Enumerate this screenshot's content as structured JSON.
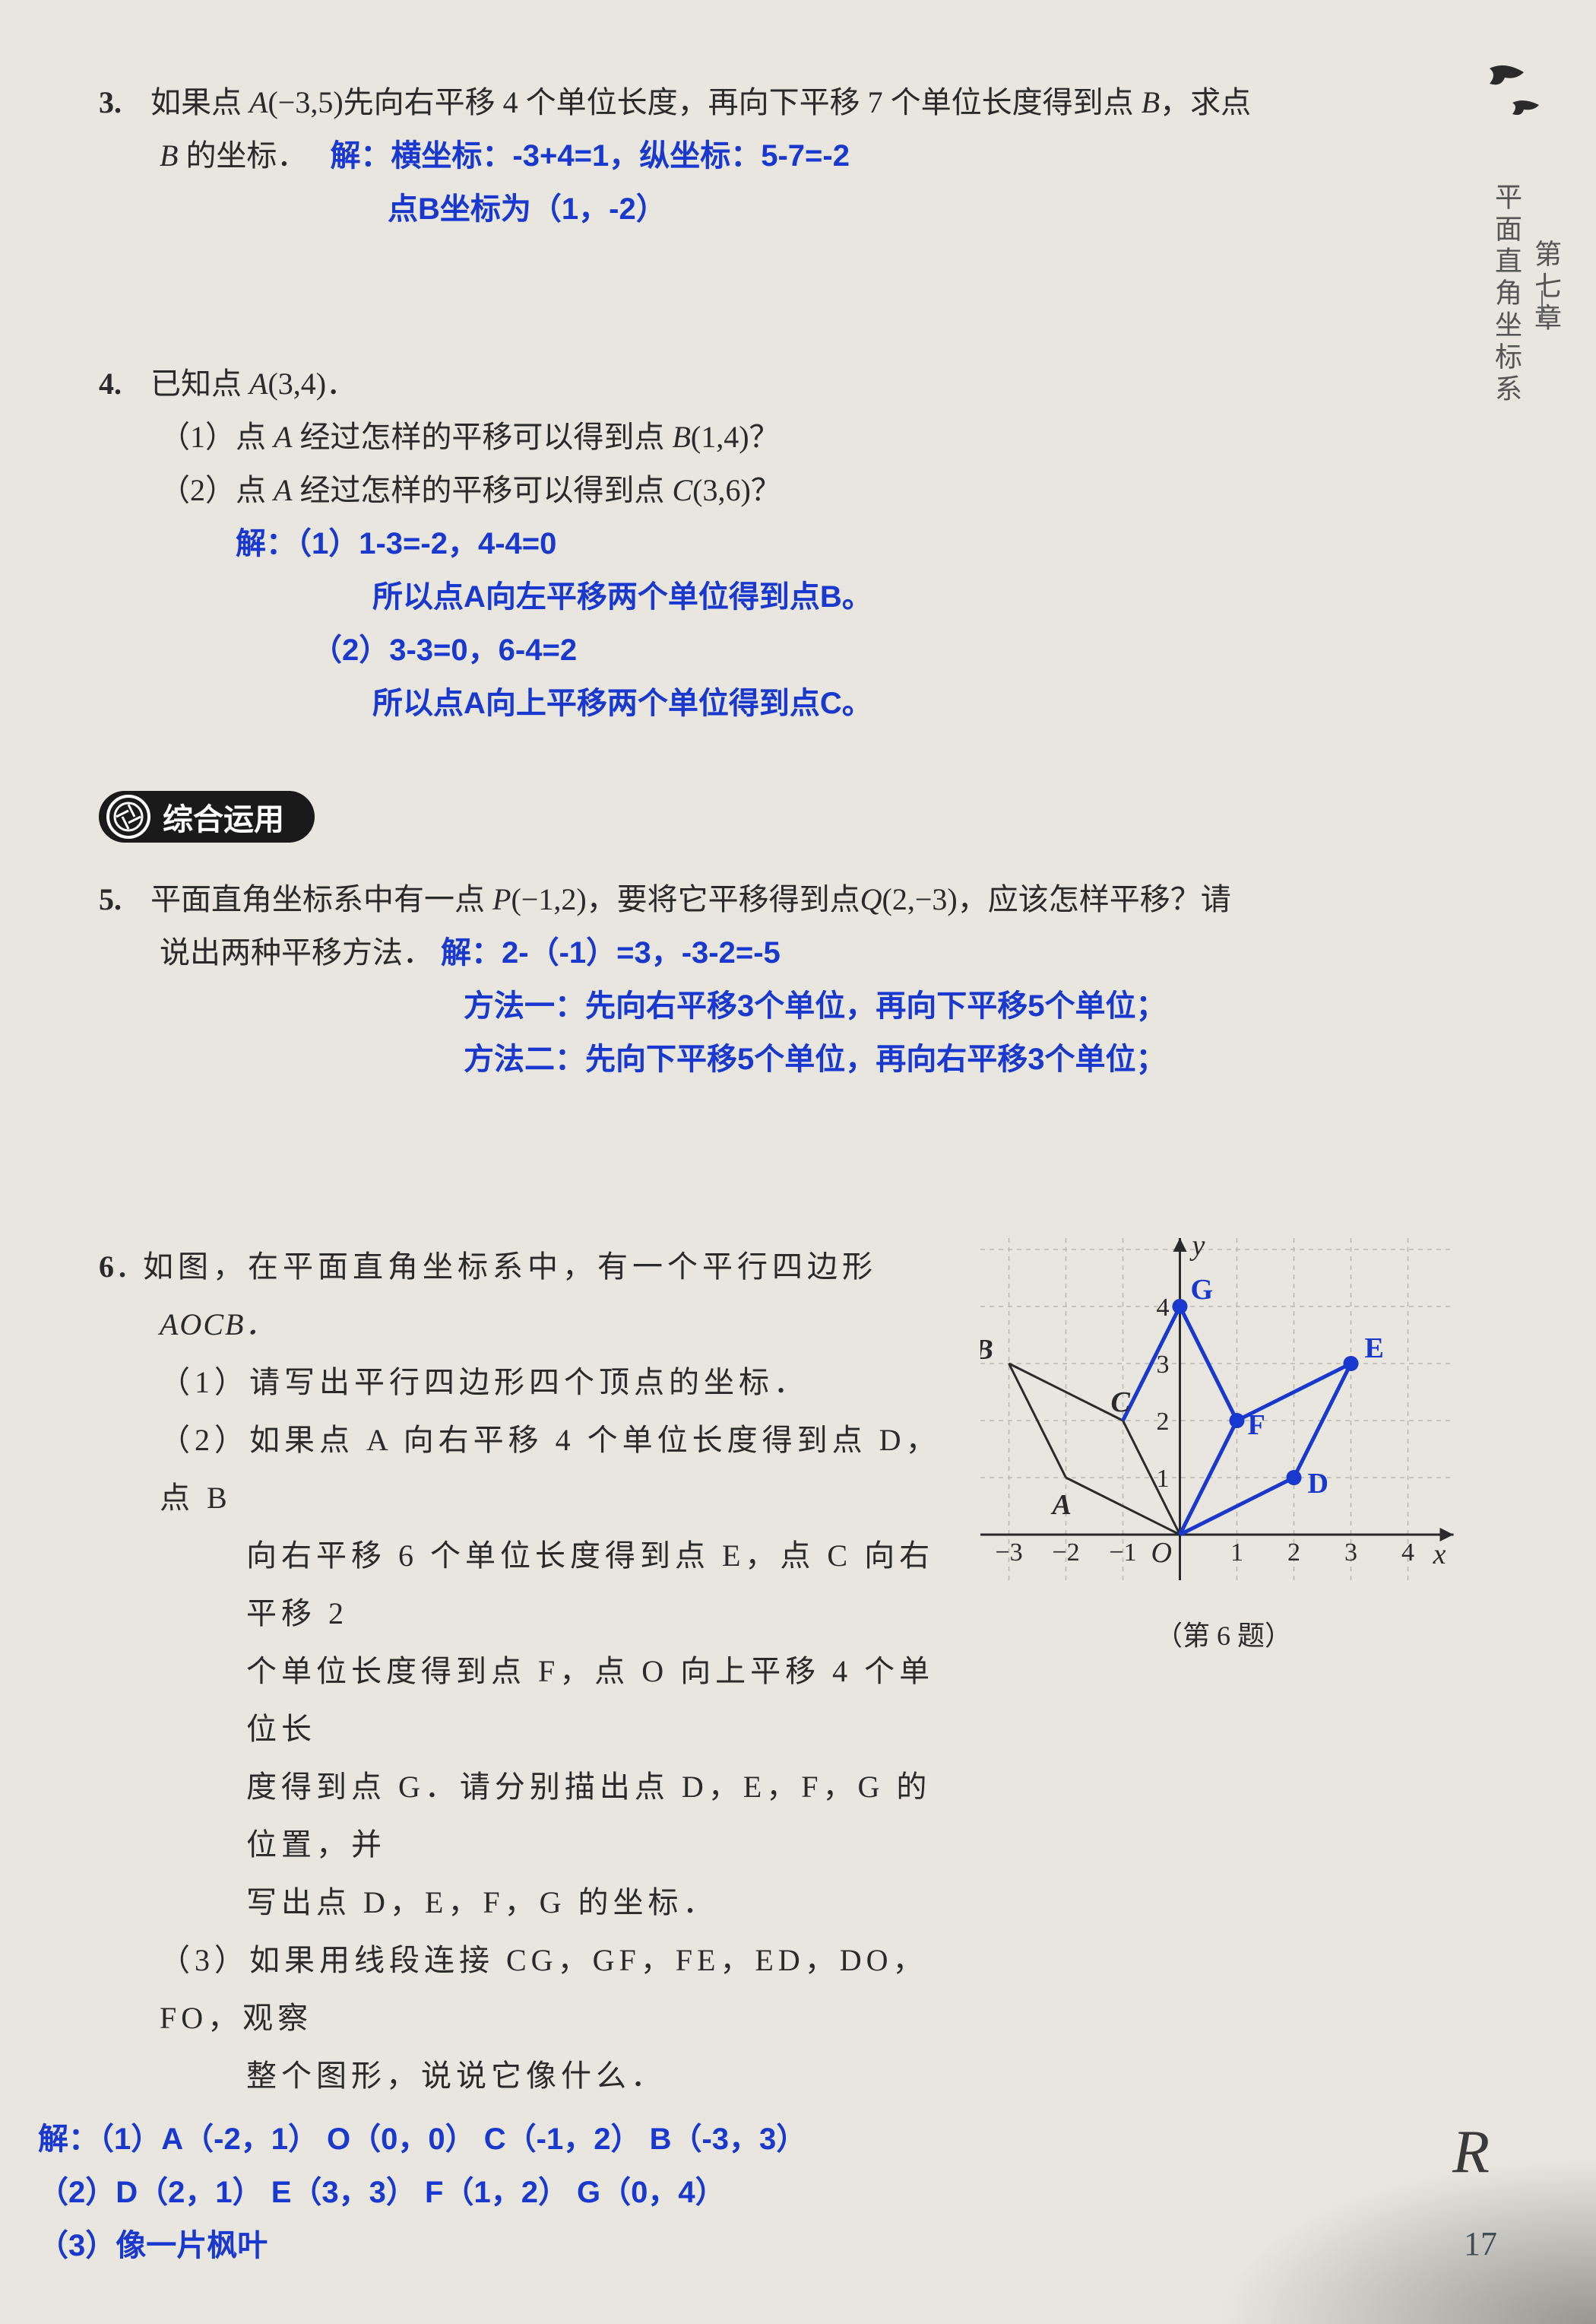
{
  "side_tab": {
    "top": "第七章",
    "bottom": "平面直角坐标系"
  },
  "section_badge": "综合运用",
  "page_number": "17",
  "corner_letter": "R",
  "q3": {
    "num": "3.",
    "text_a": "如果点 ",
    "text_b": "(−3,5)先向右平移 4 个单位长度，再向下平移 7 个单位长度得到点 ",
    "text_c": "，求点",
    "text_d": " 的坐标．",
    "A": "A",
    "B": "B",
    "ans1": "解：横坐标：-3+4=1，纵坐标：5-7=-2",
    "ans2": "点B坐标为（1，-2）"
  },
  "q4": {
    "num": "4.",
    "text_a": "已知点 ",
    "A": "A",
    "coord": "(3,4)．",
    "p1a": "（1）点 ",
    "p1b": " 经过怎样的平移可以得到点 ",
    "B": "B",
    "p1c": "(1,4)？",
    "p2a": "（2）点 ",
    "p2b": " 经过怎样的平移可以得到点 ",
    "C": "C",
    "p2c": "(3,6)？",
    "ans1": "解：（1）1-3=-2，4-4=0",
    "ans2": "所以点A向左平移两个单位得到点B。",
    "ans3": "（2）3-3=0，6-4=2",
    "ans4": "所以点A向上平移两个单位得到点C。"
  },
  "q5": {
    "num": "5.",
    "text_a": "平面直角坐标系中有一点 ",
    "P": "P",
    "coord_p": "(−1,2)，要将它平移得到点",
    "Q": "Q",
    "coord_q": "(2,−3)，应该怎样平移？请",
    "text_b": "说出两种平移方法．",
    "ans1": "解：2-（-1）=3，-3-2=-5",
    "ans2": "方法一：先向右平移3个单位，再向下平移5个单位；",
    "ans3": "方法二：先向下平移5个单位，再向右平移3个单位；"
  },
  "q6": {
    "num": "6.",
    "line1a": "如图，在平面直角坐标系中，有一个平行四边形",
    "line1b": "AOCB．",
    "p1": "（1）请写出平行四边形四个顶点的坐标．",
    "p2a": "（2）如果点 A 向右平移 4 个单位长度得到点 D，点 B",
    "p2b": "向右平移 6 个单位长度得到点 E，点 C 向右平移 2",
    "p2c": "个单位长度得到点 F，点 O 向上平移 4 个单位长",
    "p2d": "度得到点 G．请分别描出点 D，E，F，G 的位置，并",
    "p2e": "写出点 D，E，F，G 的坐标．",
    "p3a": "（3）如果用线段连接 CG，GF，FE，ED，DO，FO，观察",
    "p3b": "整个图形，说说它像什么．",
    "ans1": "解：（1）A（-2，1） O（0，0） C（-1，2） B（-3，3）",
    "ans2": "（2）D（2，1） E（3，3） F（1，2） G（0，4）",
    "ans3": "（3）像一片枫叶",
    "caption": "（第 6 题）"
  },
  "chart": {
    "xlim": [
      -3.5,
      4.8
    ],
    "ylim": [
      -0.8,
      5.2
    ],
    "cell": 75,
    "grid_color": "#b8b8b0",
    "axis_color": "#2a2a2a",
    "black_line_color": "#2a2a2a",
    "blue_color": "#1838cf",
    "label_fontsize": 34,
    "point_radius": 10,
    "labels": {
      "O": "O",
      "A": "A",
      "B": "B",
      "C": "C",
      "D": "D",
      "E": "E",
      "F": "F",
      "G": "G",
      "x": "x",
      "y": "y"
    },
    "pts": {
      "O": [
        0,
        0
      ],
      "A": [
        -2,
        1
      ],
      "B": [
        -3,
        3
      ],
      "C": [
        -1,
        2
      ],
      "D": [
        2,
        1
      ],
      "E": [
        3,
        3
      ],
      "F": [
        1,
        2
      ],
      "G": [
        0,
        4
      ]
    },
    "black_paths": [
      [
        [
          0,
          0
        ],
        [
          -2,
          1
        ]
      ],
      [
        [
          -2,
          1
        ],
        [
          -3,
          3
        ]
      ],
      [
        [
          -3,
          3
        ],
        [
          -1,
          2
        ]
      ],
      [
        [
          -1,
          2
        ],
        [
          0,
          0
        ]
      ]
    ],
    "blue_paths": [
      [
        [
          -1,
          2
        ],
        [
          0,
          4
        ]
      ],
      [
        [
          0,
          4
        ],
        [
          1,
          2
        ]
      ],
      [
        [
          1,
          2
        ],
        [
          3,
          3
        ]
      ],
      [
        [
          3,
          3
        ],
        [
          2,
          1
        ]
      ],
      [
        [
          2,
          1
        ],
        [
          0,
          0
        ]
      ],
      [
        [
          1,
          2
        ],
        [
          0,
          0
        ]
      ]
    ],
    "xticks": [
      -3,
      -2,
      -1,
      1,
      2,
      3,
      4
    ],
    "yticks": [
      1,
      2,
      3,
      4
    ]
  }
}
